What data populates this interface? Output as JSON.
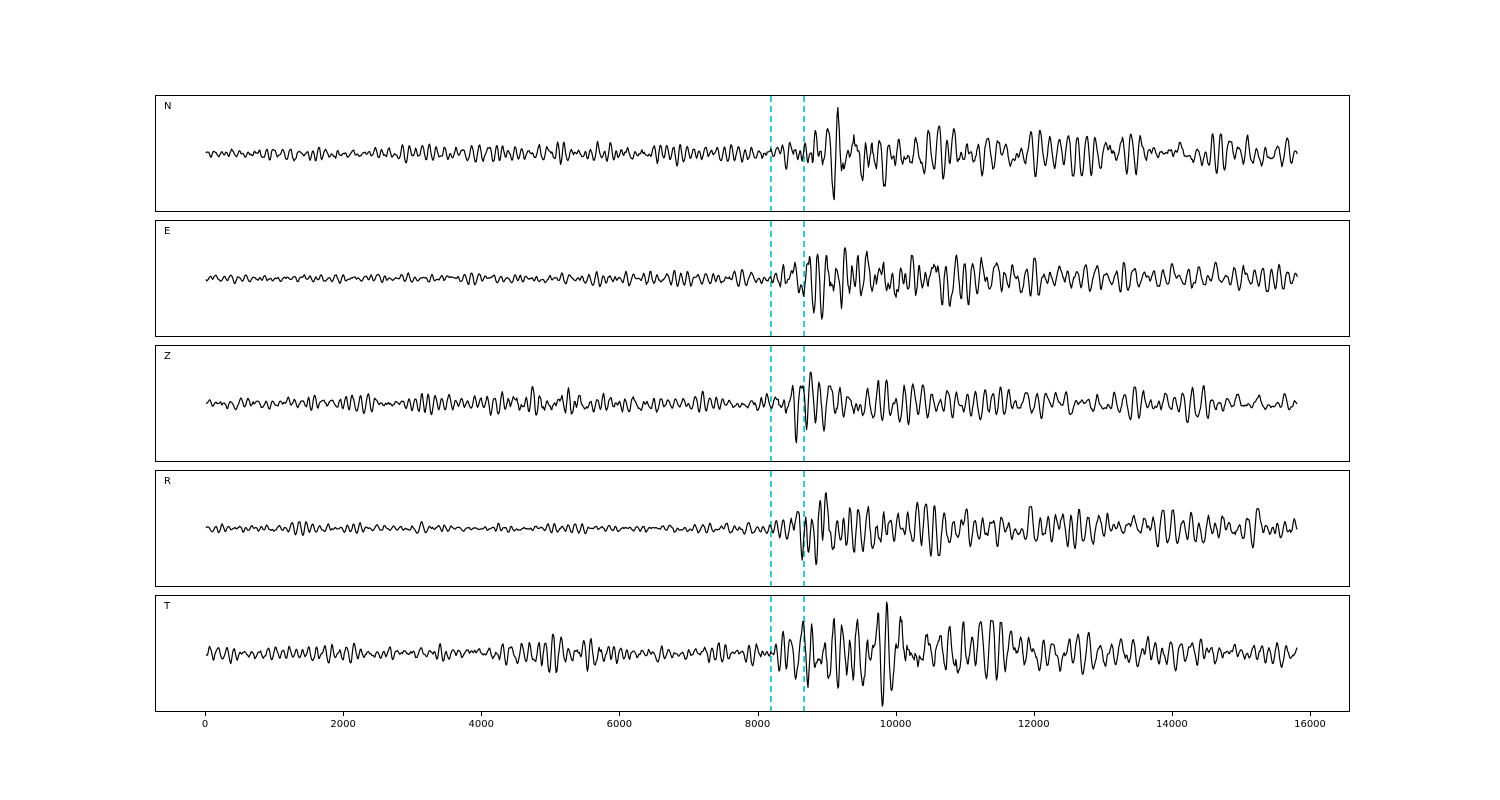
{
  "figure": {
    "background": "#ffffff",
    "title": ""
  },
  "chart_data": {
    "type": "line",
    "title": "",
    "xlabel": "",
    "ylabel": "",
    "grid": false,
    "legend": null,
    "x_range": [
      0,
      16000
    ],
    "x_tick_values": [
      0,
      2000,
      4000,
      6000,
      8000,
      10000,
      12000,
      14000,
      16000
    ],
    "x_data_start": 0,
    "x_data_end": 15800,
    "trace_color": "#000000",
    "pick_lines": {
      "color": "#00bfbf",
      "style": "dashed",
      "x_values": [
        8180,
        8660
      ]
    },
    "panels": [
      {
        "label": "N",
        "envelope": [
          [
            0,
            8
          ],
          [
            3000,
            8
          ],
          [
            4500,
            10
          ],
          [
            5500,
            12
          ],
          [
            7000,
            9
          ],
          [
            8200,
            9
          ],
          [
            8500,
            16
          ],
          [
            8800,
            38
          ],
          [
            9200,
            46
          ],
          [
            9700,
            34
          ],
          [
            10300,
            24
          ],
          [
            11000,
            20
          ],
          [
            12000,
            17
          ],
          [
            13500,
            16
          ],
          [
            15000,
            14
          ],
          [
            15800,
            11
          ]
        ]
      },
      {
        "label": "E",
        "envelope": [
          [
            0,
            5
          ],
          [
            3000,
            5
          ],
          [
            5000,
            6
          ],
          [
            6500,
            7
          ],
          [
            8200,
            7
          ],
          [
            8500,
            20
          ],
          [
            8800,
            42
          ],
          [
            9200,
            34
          ],
          [
            9800,
            26
          ],
          [
            10500,
            22
          ],
          [
            11500,
            17
          ],
          [
            12500,
            13
          ],
          [
            14000,
            11
          ],
          [
            15200,
            14
          ],
          [
            15800,
            9
          ]
        ]
      },
      {
        "label": "Z",
        "envelope": [
          [
            0,
            8
          ],
          [
            4000,
            9
          ],
          [
            4500,
            19
          ],
          [
            5200,
            17
          ],
          [
            5800,
            11
          ],
          [
            7000,
            9
          ],
          [
            8200,
            10
          ],
          [
            8420,
            34
          ],
          [
            8700,
            30
          ],
          [
            9100,
            24
          ],
          [
            9700,
            18
          ],
          [
            10500,
            14
          ],
          [
            11500,
            12
          ],
          [
            13000,
            11
          ],
          [
            14200,
            14
          ],
          [
            15000,
            11
          ],
          [
            15800,
            10
          ]
        ]
      },
      {
        "label": "R",
        "envelope": [
          [
            0,
            5
          ],
          [
            4000,
            5
          ],
          [
            6000,
            6
          ],
          [
            8200,
            7
          ],
          [
            8550,
            24
          ],
          [
            8850,
            44
          ],
          [
            9300,
            30
          ],
          [
            10000,
            23
          ],
          [
            10800,
            19
          ],
          [
            12000,
            16
          ],
          [
            13500,
            13
          ],
          [
            15200,
            15
          ],
          [
            15800,
            9
          ]
        ]
      },
      {
        "label": "T",
        "envelope": [
          [
            0,
            8
          ],
          [
            3500,
            9
          ],
          [
            4600,
            13
          ],
          [
            5400,
            15
          ],
          [
            6300,
            12
          ],
          [
            7500,
            10
          ],
          [
            8200,
            11
          ],
          [
            8600,
            28
          ],
          [
            9000,
            46
          ],
          [
            9600,
            40
          ],
          [
            10400,
            36
          ],
          [
            11200,
            26
          ],
          [
            12000,
            18
          ],
          [
            13000,
            15
          ],
          [
            14500,
            14
          ],
          [
            15800,
            12
          ]
        ]
      }
    ]
  }
}
